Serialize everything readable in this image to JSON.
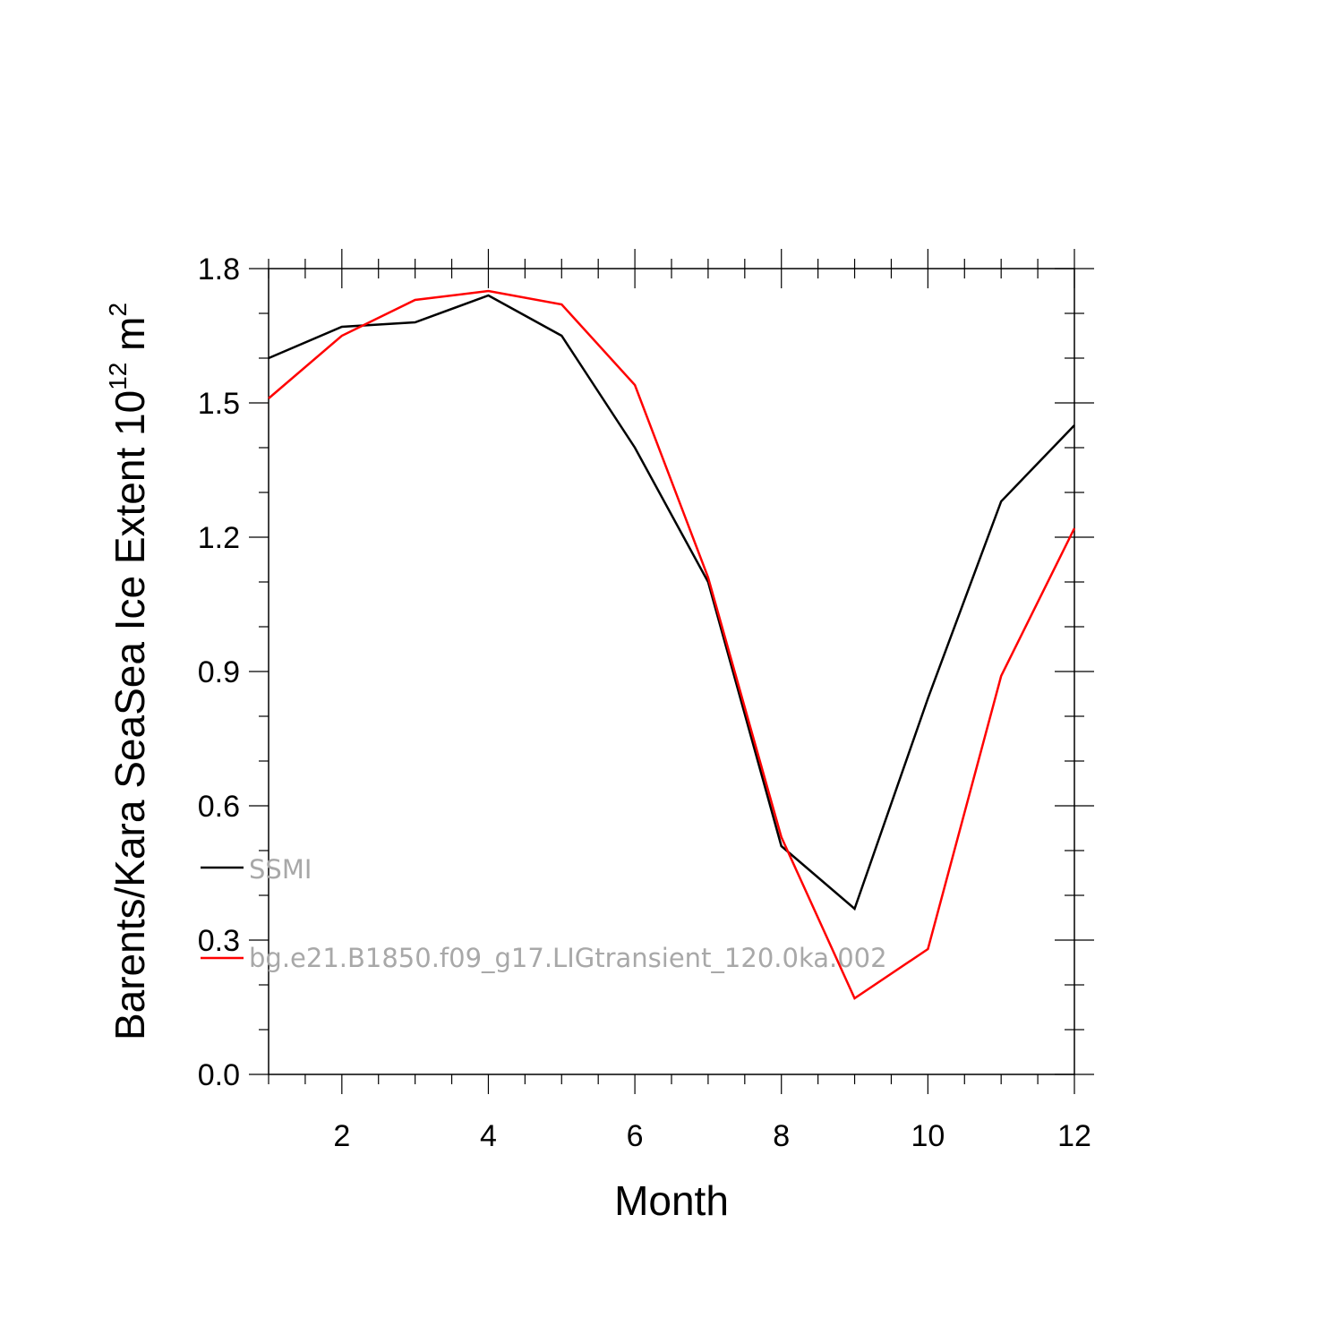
{
  "chart_data": {
    "type": "line",
    "xlabel": "Month",
    "ylabel": {
      "main": "Barents/Kara SeaSea Ice Extent 10",
      "exponent": "12",
      "unit_suffix": " m",
      "unit_exponent": "2"
    },
    "xlim": [
      1,
      12
    ],
    "ylim": [
      0,
      1.8
    ],
    "x_ticks": [
      2,
      4,
      6,
      8,
      10,
      12
    ],
    "x_tick_labels": [
      "2",
      "4",
      "6",
      "8",
      "10",
      "12"
    ],
    "y_ticks": [
      0,
      0.3,
      0.6,
      0.9,
      1.2,
      1.5,
      1.8
    ],
    "y_tick_labels": [
      "0.0",
      "0.3",
      "0.6",
      "0.9",
      "1.2",
      "1.5",
      "1.8"
    ],
    "legend_position": "inside-left",
    "x": [
      1,
      2,
      3,
      4,
      5,
      6,
      7,
      8,
      9,
      10,
      11,
      12
    ],
    "series": [
      {
        "name": "SSMI",
        "color": "#000000",
        "values": [
          1.6,
          1.67,
          1.68,
          1.74,
          1.65,
          1.4,
          1.1,
          0.51,
          0.37,
          0.84,
          1.28,
          1.45
        ]
      },
      {
        "name": "bg.e21.B1850.f09_g17.LIGtransient_120.0ka.002",
        "color": "#ff0000",
        "values": [
          1.51,
          1.65,
          1.73,
          1.75,
          1.72,
          1.54,
          1.11,
          0.53,
          0.17,
          0.28,
          0.89,
          1.22
        ]
      }
    ]
  }
}
